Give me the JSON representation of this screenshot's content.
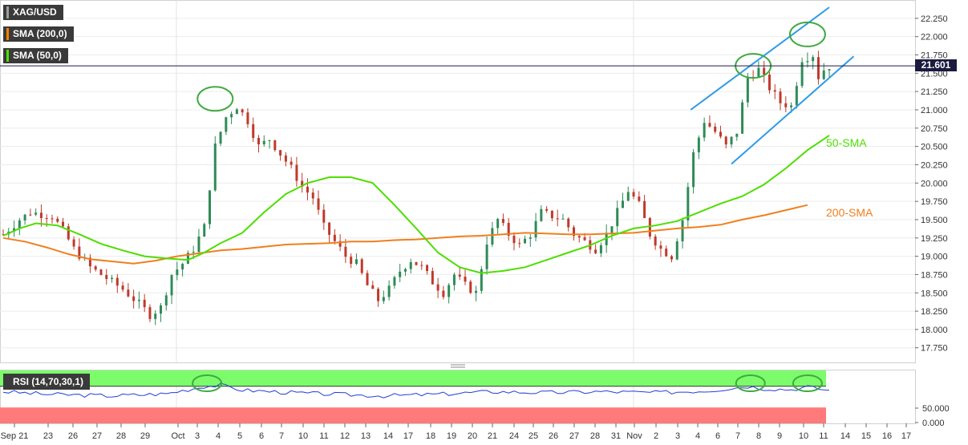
{
  "legend": [
    {
      "label": "XAG/USD",
      "color": "#9e9e9e"
    },
    {
      "label": "SMA (200,0)",
      "color": "#ff8000"
    },
    {
      "label": "SMA (50,0)",
      "color": "#4ede00"
    }
  ],
  "current_price_label": "21.601",
  "rsi_label": "RSI (14,70,30,1)",
  "annotations": {
    "sma50": "50-SMA",
    "sma200": "200-SMA"
  },
  "colors": {
    "up": "#2e8b57",
    "down": "#c0392b",
    "sma50": "#4ede00",
    "sma200": "#f07f1e",
    "channel": "#2f9be8",
    "circle": "#3faa3f",
    "rsi_line": "#1f3fd8",
    "rsi_over": "#7cfc6b",
    "rsi_under": "#ff7a7a"
  },
  "chart_data": {
    "type": "candlestick",
    "symbol": "XAG/USD",
    "y_ticks": [
      "22.250",
      "22.000",
      "21.750",
      "21.500",
      "21.250",
      "21.000",
      "20.750",
      "20.500",
      "20.250",
      "20.000",
      "19.750",
      "19.500",
      "19.250",
      "19.000",
      "18.750",
      "18.500",
      "18.250",
      "18.000",
      "17.750"
    ],
    "y_range": [
      17.55,
      22.5
    ],
    "x_labels": [
      "Sep 21",
      "23",
      "26",
      "27",
      "28",
      "29",
      "Oct",
      "3",
      "4",
      "5",
      "6",
      "7",
      "10",
      "11",
      "12",
      "13",
      "14",
      "17",
      "18",
      "19",
      "20",
      "21",
      "24",
      "25",
      "26",
      "27",
      "28",
      "31",
      "Nov",
      "2",
      "3",
      "4",
      "6",
      "7",
      "8",
      "9",
      "10",
      "11",
      "14",
      "15",
      "16",
      "17"
    ],
    "current_price": 21.601,
    "sma50_points": [
      [
        0,
        19.28
      ],
      [
        3,
        19.38
      ],
      [
        6,
        19.45
      ],
      [
        10,
        19.42
      ],
      [
        14,
        19.3
      ],
      [
        18,
        19.17
      ],
      [
        22,
        19.08
      ],
      [
        26,
        19.0
      ],
      [
        30,
        18.97
      ],
      [
        34,
        18.95
      ],
      [
        37,
        19.05
      ],
      [
        40,
        19.18
      ],
      [
        44,
        19.32
      ],
      [
        48,
        19.6
      ],
      [
        52,
        19.85
      ],
      [
        56,
        20.0
      ],
      [
        60,
        20.08
      ],
      [
        64,
        20.08
      ],
      [
        68,
        20.0
      ],
      [
        72,
        19.7
      ],
      [
        76,
        19.38
      ],
      [
        80,
        19.05
      ],
      [
        84,
        18.85
      ],
      [
        88,
        18.77
      ],
      [
        92,
        18.8
      ],
      [
        96,
        18.85
      ],
      [
        100,
        18.95
      ],
      [
        104,
        19.05
      ],
      [
        108,
        19.15
      ],
      [
        112,
        19.28
      ],
      [
        116,
        19.38
      ],
      [
        120,
        19.42
      ],
      [
        124,
        19.48
      ],
      [
        128,
        19.6
      ],
      [
        132,
        19.72
      ],
      [
        136,
        19.82
      ],
      [
        140,
        19.98
      ],
      [
        144,
        20.2
      ],
      [
        148,
        20.45
      ],
      [
        152,
        20.65
      ]
    ],
    "sma200_points": [
      [
        0,
        19.25
      ],
      [
        4,
        19.2
      ],
      [
        8,
        19.12
      ],
      [
        12,
        19.03
      ],
      [
        16,
        18.96
      ],
      [
        20,
        18.93
      ],
      [
        24,
        18.9
      ],
      [
        28,
        18.94
      ],
      [
        32,
        19.0
      ],
      [
        36,
        19.04
      ],
      [
        40,
        19.08
      ],
      [
        44,
        19.1
      ],
      [
        48,
        19.13
      ],
      [
        52,
        19.16
      ],
      [
        56,
        19.17
      ],
      [
        60,
        19.18
      ],
      [
        64,
        19.2
      ],
      [
        68,
        19.2
      ],
      [
        72,
        19.22
      ],
      [
        76,
        19.23
      ],
      [
        80,
        19.25
      ],
      [
        84,
        19.27
      ],
      [
        88,
        19.28
      ],
      [
        92,
        19.3
      ],
      [
        96,
        19.32
      ],
      [
        100,
        19.31
      ],
      [
        104,
        19.3
      ],
      [
        108,
        19.3
      ],
      [
        112,
        19.31
      ],
      [
        116,
        19.32
      ],
      [
        120,
        19.35
      ],
      [
        124,
        19.38
      ],
      [
        128,
        19.4
      ],
      [
        132,
        19.43
      ],
      [
        136,
        19.5
      ],
      [
        140,
        19.56
      ],
      [
        144,
        19.63
      ],
      [
        148,
        19.7
      ]
    ],
    "channel_upper": [
      [
        126.5,
        21.0
      ],
      [
        152,
        22.4
      ]
    ],
    "channel_lower": [
      [
        134,
        20.26
      ],
      [
        156.5,
        21.73
      ]
    ],
    "circles": [
      [
        39,
        21.15
      ],
      [
        138,
        21.6
      ],
      [
        148,
        22.03
      ]
    ],
    "rsi_levels": {
      "overbought": 70,
      "oversold": 30,
      "ticks": [
        "50.000",
        "0.000"
      ]
    },
    "rsi_circles": [
      37.5,
      137.5,
      148
    ],
    "ohlc_bars": 153
  }
}
